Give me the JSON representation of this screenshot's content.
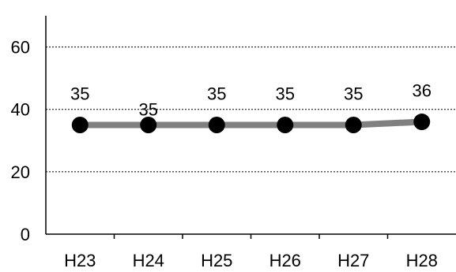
{
  "chart_data": {
    "type": "line",
    "categories": [
      "H23",
      "H24",
      "H25",
      "H26",
      "H27",
      "H28"
    ],
    "series": [
      {
        "values": [
          35,
          35,
          35,
          35,
          35,
          36
        ]
      }
    ],
    "data_labels": [
      "35",
      "35",
      "35",
      "35",
      "35",
      "36"
    ],
    "y_ticks": [
      "0",
      "20",
      "40",
      "60"
    ],
    "ylim": [
      0,
      70
    ],
    "grid": true,
    "legend": "none",
    "line_color": "#808080",
    "marker_color": "#000000"
  }
}
